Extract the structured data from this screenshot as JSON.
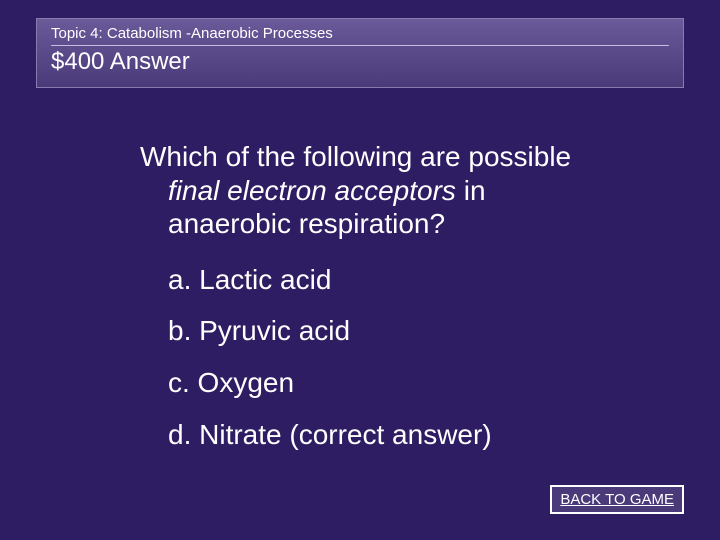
{
  "header": {
    "topic": "Topic 4: Catabolism -Anaerobic Processes",
    "value_answer": "$400 Answer"
  },
  "question": {
    "line1": "Which of the following are possible",
    "line2_italic": "final electron acceptors",
    "line2_rest": " in",
    "line3": "anaerobic respiration?"
  },
  "options": {
    "a": "a. Lactic acid",
    "b": "b. Pyruvic acid",
    "c": "c. Oxygen",
    "d": "d. Nitrate (correct answer)"
  },
  "back_button": "BACK TO GAME",
  "style": {
    "background_color": "#2f1d63",
    "header_gradient_top": "#6a5a99",
    "header_gradient_mid": "#5a4a8a",
    "header_gradient_bottom": "#4a3a7a",
    "header_border": "#8a7ab0",
    "divider_color": "#c8bce0",
    "text_color": "#ffffff",
    "topic_fontsize": 15,
    "value_fontsize": 24,
    "body_fontsize": 28,
    "button_fontsize": 15,
    "button_bg": "#4a3a7a",
    "button_border": "#ffffff",
    "slide_width": 720,
    "slide_height": 540
  }
}
